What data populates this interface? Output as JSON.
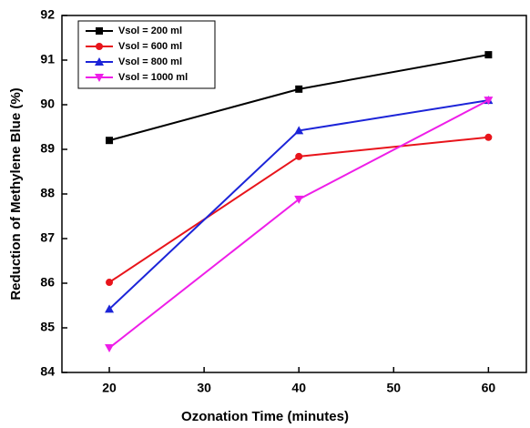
{
  "chart_data": {
    "type": "line",
    "xlabel": "Ozonation Time (minutes)",
    "ylabel": "Reduction of Methylene Blue (%)",
    "x": [
      20,
      40,
      60
    ],
    "series": [
      {
        "name": "Vsol = 200 ml",
        "color": "#000000",
        "marker": "square",
        "values": [
          89.2,
          90.35,
          91.12
        ]
      },
      {
        "name": "Vsol = 600 ml",
        "color": "#e8141b",
        "marker": "circle",
        "values": [
          86.02,
          88.84,
          89.27
        ]
      },
      {
        "name": "Vsol = 800 ml",
        "color": "#1c24d8",
        "marker": "triangle-up",
        "values": [
          85.42,
          89.42,
          90.1
        ]
      },
      {
        "name": "Vsol = 1000 ml",
        "color": "#ee1ee8",
        "marker": "triangle-down",
        "values": [
          84.55,
          87.88,
          90.1
        ]
      }
    ],
    "xlim": [
      15,
      64
    ],
    "xticks": [
      20,
      30,
      40,
      50,
      60
    ],
    "ylim": [
      84,
      92
    ],
    "yticks": [
      84,
      85,
      86,
      87,
      88,
      89,
      90,
      91,
      92
    ],
    "legend": "upper-left"
  }
}
